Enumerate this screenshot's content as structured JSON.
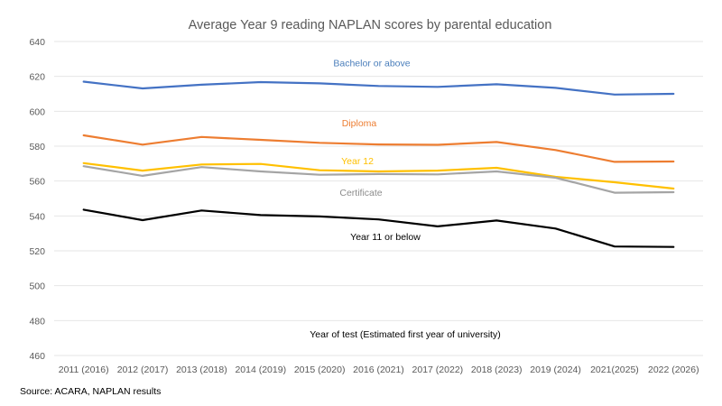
{
  "chart_data": {
    "type": "line",
    "title": "Average Year 9 reading NAPLAN scores by parental education",
    "xlabel": "Year of test (Estimated first year of university)",
    "ylabel": "",
    "ylim": [
      460,
      640
    ],
    "yticks": [
      460,
      480,
      500,
      520,
      540,
      560,
      580,
      600,
      620,
      640
    ],
    "grid": true,
    "legend": "inline labels",
    "categories": [
      "2011 (2016)",
      "2012 (2017)",
      "2013 (2018)",
      "2014 (2019)",
      "2015 (2020)",
      "2016 (2021)",
      "2017 (2022)",
      "2018 (2023)",
      "2019 (2024)",
      "2021(2025)",
      "2022 (2026)"
    ],
    "series": [
      {
        "name": "Bachelor or above",
        "color": "#4472c4",
        "values": [
          617.0,
          613.1,
          615.2,
          616.7,
          616.0,
          614.5,
          614.0,
          615.5,
          613.4,
          609.6,
          610.0
        ]
      },
      {
        "name": "Diploma",
        "color": "#ed7d31",
        "values": [
          586.2,
          580.9,
          585.3,
          583.6,
          581.9,
          581.0,
          580.8,
          582.4,
          577.8,
          571.0,
          571.2
        ]
      },
      {
        "name": "Year 12",
        "color": "#ffc000",
        "values": [
          570.3,
          566.0,
          569.5,
          569.8,
          566.2,
          565.5,
          566.0,
          567.6,
          562.4,
          559.3,
          555.7
        ]
      },
      {
        "name": "Certificate",
        "color": "#a5a5a5",
        "values": [
          568.5,
          563.0,
          568.0,
          565.5,
          563.6,
          564.0,
          563.8,
          565.5,
          561.9,
          553.3,
          553.6
        ]
      },
      {
        "name": "Year 11 or below",
        "color": "#000000",
        "values": [
          543.6,
          537.6,
          543.1,
          540.5,
          539.7,
          538.0,
          534.0,
          537.4,
          532.8,
          522.5,
          522.2
        ]
      }
    ],
    "source": "Source: ACARA,  NAPLAN results"
  }
}
